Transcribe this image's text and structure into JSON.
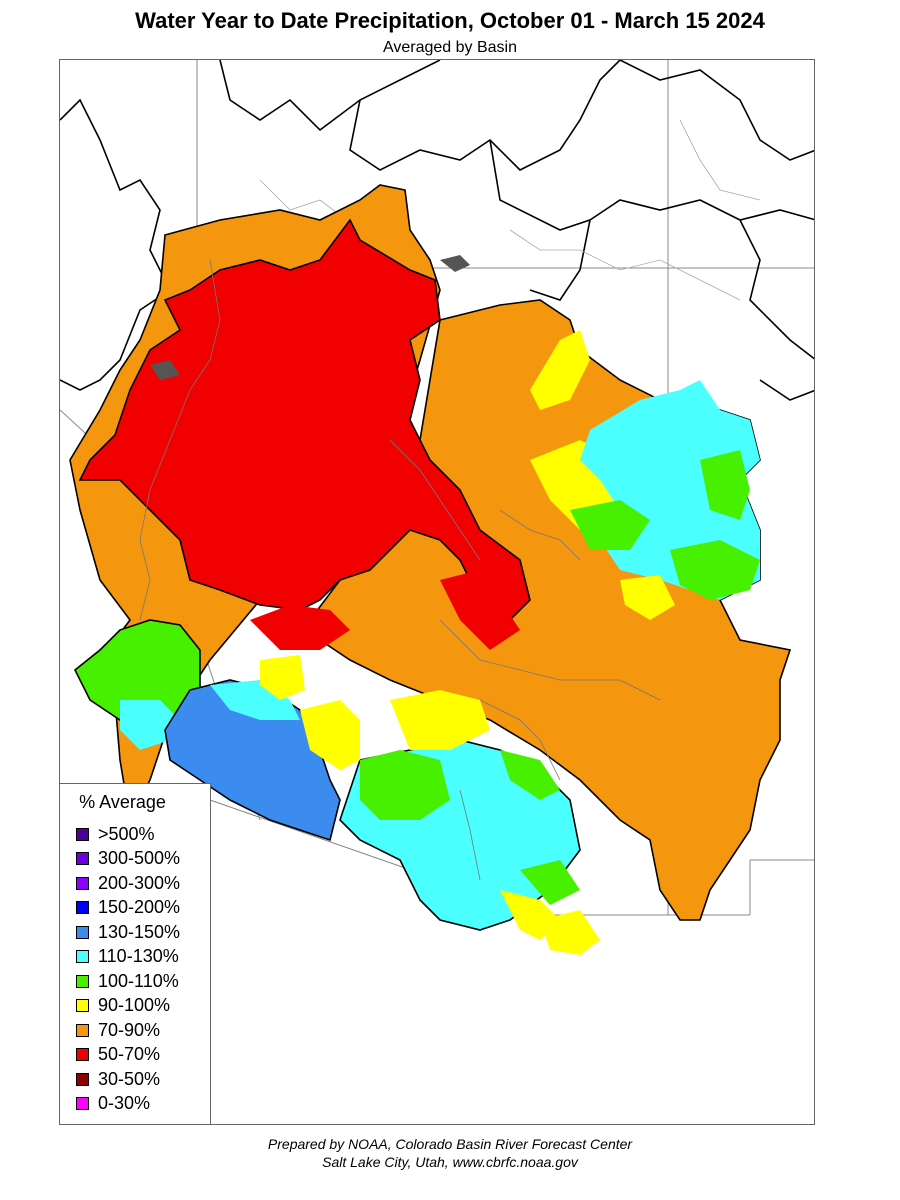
{
  "title": "Water Year to Date Precipitation, October 01  - March 15 2024",
  "subtitle": "Averaged by Basin",
  "legend": {
    "title": "% Average",
    "items": [
      {
        "label": ">500%",
        "color": "#4b0096"
      },
      {
        "label": "300-500%",
        "color": "#6e00dc"
      },
      {
        "label": "200-300%",
        "color": "#8c00ff"
      },
      {
        "label": "150-200%",
        "color": "#0000ff"
      },
      {
        "label": "130-150%",
        "color": "#3c8cf0"
      },
      {
        "label": "110-130%",
        "color": "#4bffff"
      },
      {
        "label": "100-110%",
        "color": "#46f000"
      },
      {
        "label": "90-100%",
        "color": "#ffff00"
      },
      {
        "label": "70-90%",
        "color": "#f5960f"
      },
      {
        "label": "50-70%",
        "color": "#f00000"
      },
      {
        "label": "30-50%",
        "color": "#8c0000"
      },
      {
        "label": "0-30%",
        "color": "#ff00ff"
      }
    ]
  },
  "credit": {
    "line1": "Prepared by NOAA, Colorado Basin River Forecast Center",
    "line2": "Salt Lake City, Utah, www.cbrfc.noaa.gov"
  }
}
